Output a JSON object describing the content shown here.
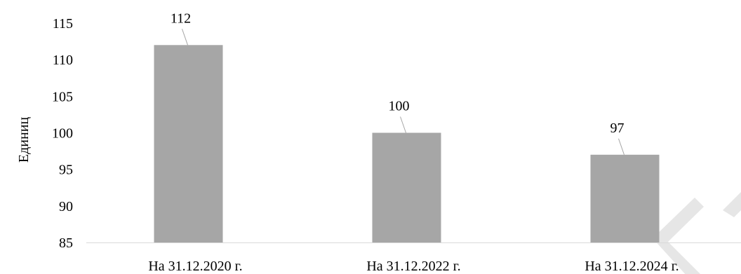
{
  "chart_data": {
    "type": "bar",
    "categories": [
      "На 31.12.2020 г.",
      "На 31.12.2022 г.",
      "На 31.12.2024 г."
    ],
    "values": [
      112,
      100,
      97
    ],
    "data_labels": [
      "112",
      "100",
      "97"
    ],
    "ylabel": "Единиц",
    "xlabel": "",
    "ylim": [
      85,
      115
    ],
    "yticks": [
      85,
      90,
      95,
      100,
      105,
      110,
      115
    ],
    "ytick_labels": [
      "85",
      "90",
      "95",
      "100",
      "105",
      "110",
      "115"
    ],
    "grid": false,
    "legend": "none",
    "bar_color": "#a6a6a6",
    "watermark": "БГУ"
  }
}
